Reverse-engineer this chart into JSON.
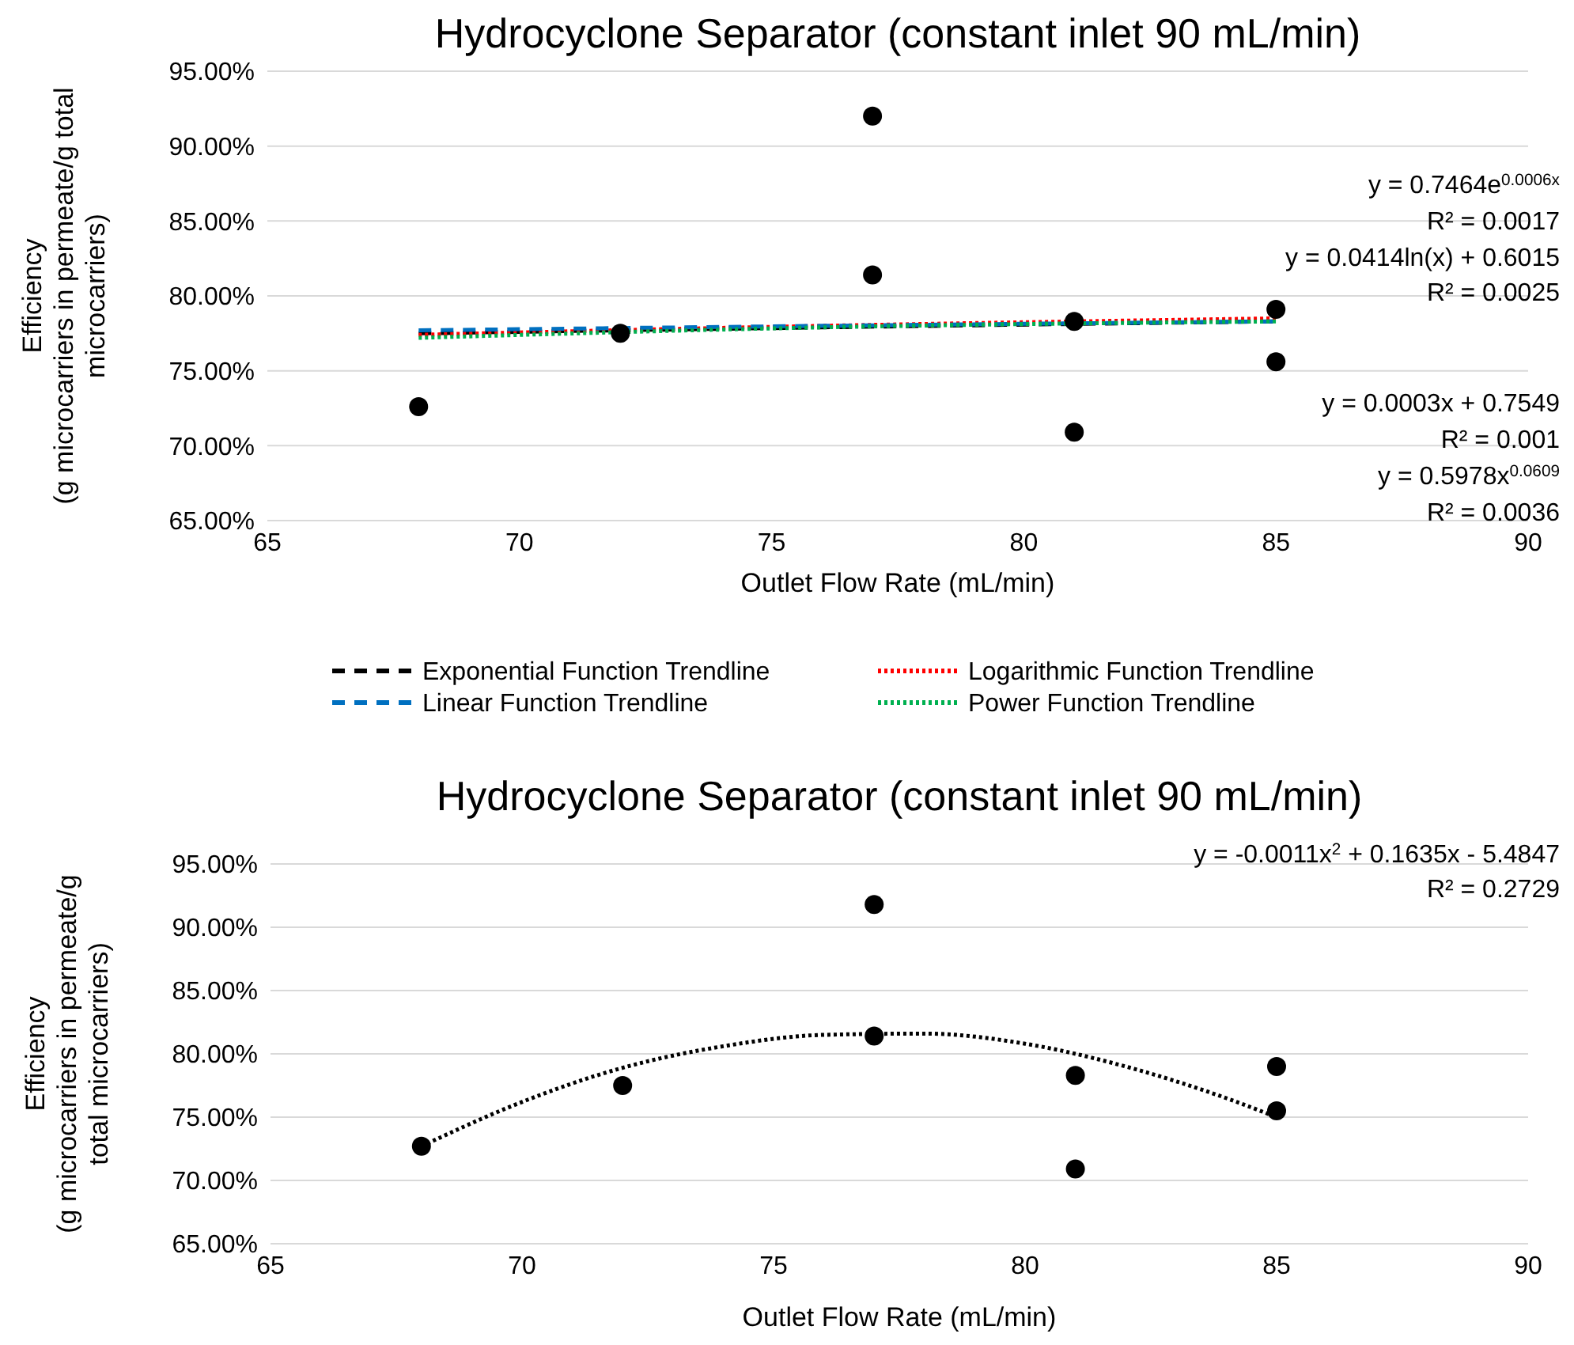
{
  "chart_data": [
    {
      "type": "scatter",
      "title": "Hydrocyclone Separator (constant inlet 90 mL/min)",
      "xlabel": "Outlet Flow Rate (mL/min)",
      "ylabel": "Efficiency (g microcarriers in permeate/g total microcarriers)",
      "xlim": [
        65,
        90
      ],
      "xticks": [
        65,
        70,
        75,
        80,
        85,
        90
      ],
      "ylim": [
        65,
        95
      ],
      "yticks": [
        {
          "value": 65,
          "label": "65.00%"
        },
        {
          "value": 70,
          "label": "70.00%"
        },
        {
          "value": 75,
          "label": "75.00%"
        },
        {
          "value": 80,
          "label": "80.00%"
        },
        {
          "value": 85,
          "label": "85.00%"
        },
        {
          "value": 90,
          "label": "90.00%"
        },
        {
          "value": 95,
          "label": "95.00%"
        }
      ],
      "grid": "y",
      "legend": "bottom",
      "marker": "circle",
      "series": [
        {
          "color": "#000000",
          "x": [
            68,
            72,
            77,
            77,
            81,
            81,
            85,
            85
          ],
          "values": [
            72.6,
            77.5,
            92.0,
            81.4,
            78.3,
            70.9,
            79.1,
            75.6
          ]
        },
        {
          "type": "line",
          "name": "Exponential Function Trendline",
          "color": "#000000",
          "line_style": "dashed",
          "marker": "none",
          "x": [
            68,
            76,
            85
          ],
          "values": [
            77.5,
            77.9,
            78.3
          ]
        },
        {
          "type": "line",
          "name": "Logarithmic Function Trendline",
          "color": "#ff0000",
          "line_style": "dotted",
          "marker": "none",
          "x": [
            68,
            76,
            85
          ],
          "values": [
            77.4,
            78.0,
            78.5
          ]
        },
        {
          "type": "line",
          "name": "Linear Function Trendline",
          "color": "#0070c0",
          "line_style": "dashed",
          "marker": "none",
          "x": [
            68,
            76,
            85
          ],
          "values": [
            77.7,
            78.0,
            78.3
          ]
        },
        {
          "type": "line",
          "name": "Power Function Trendline",
          "color": "#00b050",
          "line_style": "dotted",
          "marker": "none",
          "x": [
            68,
            76,
            85
          ],
          "values": [
            77.2,
            77.9,
            78.3
          ]
        }
      ],
      "annotations": [
        "y = 0.7464e$^{0.0006x}$",
        "R² = 0.0017",
        "y = 0.0414ln(x) + 0.6015",
        "R² = 0.0025",
        "y = 0.0003x + 0.7549",
        "R² = 0.001",
        "y = 0.5978x$^{0.0609}$",
        "R² = 0.0036"
      ]
    },
    {
      "type": "scatter",
      "title": "Hydrocyclone Separator (constant inlet 90 mL/min)",
      "xlabel": "Outlet Flow Rate (mL/min)",
      "ylabel": "Efficiency (g microcarriers in permeate/g total microcarriers)",
      "xlim": [
        65,
        90
      ],
      "xticks": [
        65,
        70,
        75,
        80,
        85,
        90
      ],
      "ylim": [
        65,
        95
      ],
      "yticks": [
        {
          "value": 65,
          "label": "65.00%"
        },
        {
          "value": 70,
          "label": "70.00%"
        },
        {
          "value": 75,
          "label": "75.00%"
        },
        {
          "value": 80,
          "label": "80.00%"
        },
        {
          "value": 85,
          "label": "85.00%"
        },
        {
          "value": 90,
          "label": "90.00%"
        },
        {
          "value": 95,
          "label": "95.00%"
        }
      ],
      "grid": "y",
      "marker": "circle",
      "series": [
        {
          "color": "#000000",
          "x": [
            68,
            72,
            77,
            77,
            81,
            81,
            85,
            85
          ],
          "values": [
            72.7,
            77.5,
            91.8,
            81.4,
            78.3,
            70.9,
            79.0,
            75.5
          ]
        },
        {
          "type": "line",
          "color": "#000000",
          "line_style": "dotted",
          "marker": "none",
          "x": [
            68,
            70,
            72,
            74,
            76,
            78,
            80,
            82,
            84,
            85
          ],
          "values": [
            72.7,
            76.2,
            78.9,
            80.6,
            81.5,
            81.6,
            80.8,
            79.0,
            76.5,
            75.0
          ]
        }
      ],
      "annotations": [
        "y = -0.0011x$^{2}$ + 0.1635x - 5.4847",
        "R² = 0.2729"
      ]
    }
  ]
}
